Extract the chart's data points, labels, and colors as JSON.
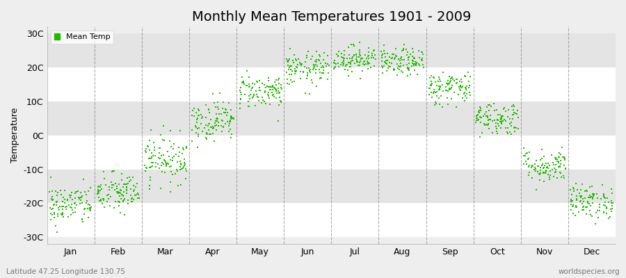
{
  "title": "Monthly Mean Temperatures 1901 - 2009",
  "ylabel": "Temperature",
  "subtitle_left": "Latitude 47.25 Longitude 130.75",
  "subtitle_right": "worldspecies.org",
  "legend_label": "Mean Temp",
  "months": [
    "Jan",
    "Feb",
    "Mar",
    "Apr",
    "May",
    "Jun",
    "Jul",
    "Aug",
    "Sep",
    "Oct",
    "Nov",
    "Dec"
  ],
  "yticks": [
    -30,
    -20,
    -10,
    0,
    10,
    20,
    30
  ],
  "ytick_labels": [
    "-30C",
    "-20C",
    "-10C",
    "0C",
    "10C",
    "20C",
    "30C"
  ],
  "ylim": [
    -32,
    32
  ],
  "xlim": [
    0,
    12
  ],
  "dot_color": "#22bb00",
  "dot_size": 3,
  "bg_color": "#eeeeee",
  "band_color_even": "#ffffff",
  "band_color_odd": "#e4e4e4",
  "grid_color": "#888888",
  "title_fontsize": 14,
  "monthly_means": [
    -20.5,
    -17.0,
    -7.0,
    4.5,
    13.0,
    19.5,
    22.5,
    21.5,
    14.0,
    5.0,
    -9.0,
    -19.5
  ],
  "monthly_stds": [
    3.0,
    3.0,
    3.5,
    3.0,
    2.5,
    2.5,
    2.0,
    2.0,
    2.5,
    2.5,
    2.5,
    2.5
  ],
  "n_points": 109
}
